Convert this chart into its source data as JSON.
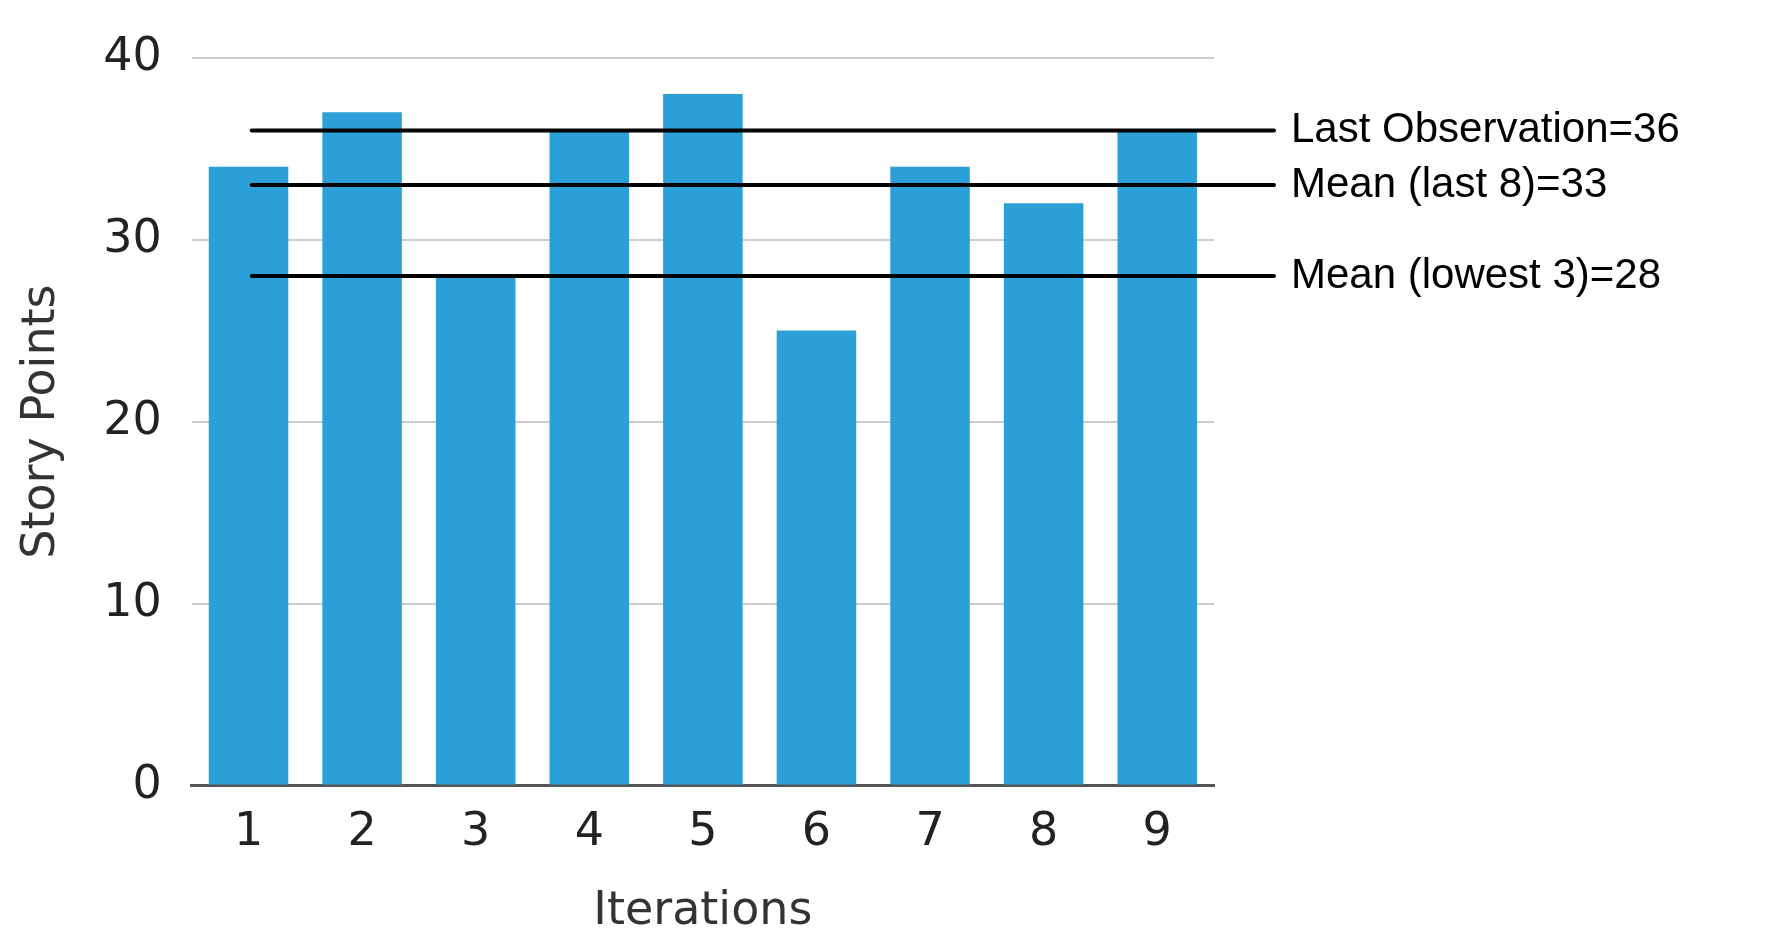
{
  "chart_data": {
    "type": "bar",
    "xlabel": "Iterations",
    "ylabel": "Story Points",
    "categories": [
      "1",
      "2",
      "3",
      "4",
      "5",
      "6",
      "7",
      "8",
      "9"
    ],
    "values": [
      34,
      37,
      28,
      36,
      38,
      25,
      34,
      32,
      36
    ],
    "color": "#2a9fd8",
    "ylim": [
      0,
      40
    ],
    "yticks": [
      0,
      10,
      20,
      30,
      40
    ],
    "grid": "y",
    "legend": false,
    "ref_lines": [
      {
        "axis": "y",
        "value": 36,
        "label": "Last Observation=36",
        "color": "#000000"
      },
      {
        "axis": "y",
        "value": 33,
        "label": "Mean (last 8)=33",
        "color": "#000000"
      },
      {
        "axis": "y",
        "value": 28,
        "label": "Mean (lowest 3)=28",
        "color": "#000000"
      }
    ]
  }
}
